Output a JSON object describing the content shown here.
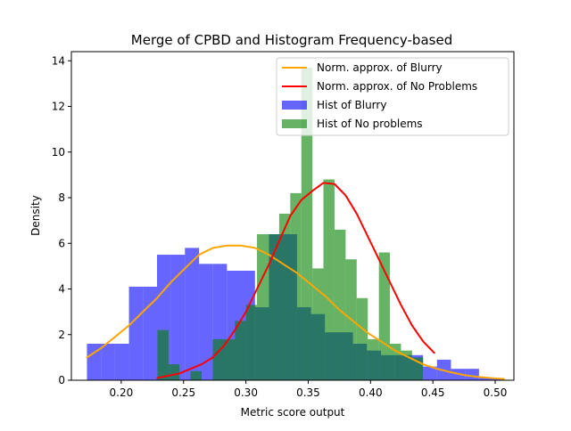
{
  "chart_data": {
    "type": "bar",
    "title": "Merge of CPBD and Histogram Frequency-based",
    "xlabel": "Metric score output",
    "ylabel": "Density",
    "xlim": [
      0.16,
      0.515
    ],
    "ylim": [
      0,
      14.4
    ],
    "x_ticks": [
      "0.20",
      "0.25",
      "0.30",
      "0.35",
      "0.40",
      "0.45",
      "0.50"
    ],
    "x_tick_values": [
      0.2,
      0.25,
      0.3,
      0.35,
      0.4,
      0.45,
      0.5
    ],
    "y_ticks": [
      "0",
      "2",
      "4",
      "6",
      "8",
      "10",
      "12",
      "14"
    ],
    "y_tick_values": [
      0,
      2,
      4,
      6,
      8,
      10,
      12,
      14
    ],
    "legend_position": "upper right",
    "grid": false,
    "histograms": [
      {
        "name": "Hist of Blurry",
        "color": "#0000ff",
        "opacity": 0.6,
        "bin_edges": [
          0.1725,
          0.1837,
          0.195,
          0.2062,
          0.2174,
          0.2287,
          0.2399,
          0.2511,
          0.2624,
          0.2736,
          0.2848,
          0.296,
          0.3073,
          0.3185,
          0.3297,
          0.341,
          0.3522,
          0.3634,
          0.3747,
          0.3859,
          0.3971,
          0.4084,
          0.4196,
          0.4308,
          0.4421,
          0.4533,
          0.4645,
          0.4758,
          0.487,
          0.4982,
          0.507
        ],
        "values": [
          1.6,
          1.6,
          1.6,
          4.1,
          4.1,
          5.5,
          5.5,
          5.8,
          5.1,
          5.1,
          4.8,
          4.8,
          3.2,
          6.4,
          6.4,
          3.2,
          2.9,
          2.1,
          2.1,
          1.6,
          1.3,
          1.1,
          1.1,
          1.1,
          0.6,
          0.9,
          0.5,
          0.5,
          0.1,
          0.1
        ]
      },
      {
        "name": "Hist of No problems",
        "color": "#008000",
        "opacity": 0.6,
        "bin_edges": [
          0.229,
          0.2379,
          0.2468,
          0.2556,
          0.2645,
          0.2734,
          0.2823,
          0.2912,
          0.3001,
          0.3089,
          0.3178,
          0.3267,
          0.3356,
          0.3445,
          0.3534,
          0.3622,
          0.3711,
          0.38,
          0.3889,
          0.3978,
          0.4067,
          0.4155,
          0.4244,
          0.4333,
          0.4422,
          0.4511
        ],
        "values": [
          2.2,
          0.7,
          0.0,
          0.4,
          0.0,
          1.8,
          1.8,
          2.6,
          3.3,
          6.4,
          6.4,
          7.3,
          8.2,
          13.7,
          4.9,
          8.8,
          6.6,
          5.3,
          3.6,
          1.8,
          5.6,
          1.6,
          1.3,
          1.0,
          0.0
        ]
      }
    ],
    "series": [
      {
        "name": "Norm. approx. of Blurry",
        "color": "#ffa500",
        "x": [
          0.1725,
          0.1837,
          0.195,
          0.2062,
          0.2174,
          0.2287,
          0.2399,
          0.2511,
          0.2624,
          0.2736,
          0.2848,
          0.296,
          0.3073,
          0.3185,
          0.3297,
          0.341,
          0.3522,
          0.3634,
          0.3747,
          0.3859,
          0.3971,
          0.4084,
          0.4196,
          0.4308,
          0.4421,
          0.4533,
          0.4645,
          0.4758,
          0.487,
          0.4982,
          0.507
        ],
        "y": [
          1.0,
          1.4,
          1.9,
          2.4,
          3.0,
          3.6,
          4.3,
          4.9,
          5.5,
          5.8,
          5.9,
          5.9,
          5.8,
          5.5,
          5.1,
          4.7,
          4.2,
          3.7,
          3.1,
          2.6,
          2.1,
          1.7,
          1.3,
          1.0,
          0.7,
          0.5,
          0.35,
          0.22,
          0.14,
          0.09,
          0.06
        ]
      },
      {
        "name": "Norm. approx. of No Problems",
        "color": "#ff0000",
        "x": [
          0.229,
          0.2379,
          0.2468,
          0.2556,
          0.2645,
          0.2734,
          0.2823,
          0.2912,
          0.3001,
          0.3089,
          0.3178,
          0.3267,
          0.3356,
          0.3445,
          0.3534,
          0.3622,
          0.3711,
          0.38,
          0.3889,
          0.3978,
          0.4067,
          0.4155,
          0.4244,
          0.4333,
          0.4422,
          0.4511
        ],
        "y": [
          0.1,
          0.2,
          0.3,
          0.5,
          0.7,
          1.0,
          1.5,
          2.2,
          3.0,
          4.0,
          5.0,
          6.1,
          7.2,
          7.9,
          8.3,
          8.65,
          8.6,
          8.1,
          7.3,
          6.3,
          5.3,
          4.3,
          3.3,
          2.4,
          1.7,
          1.2
        ]
      }
    ]
  }
}
